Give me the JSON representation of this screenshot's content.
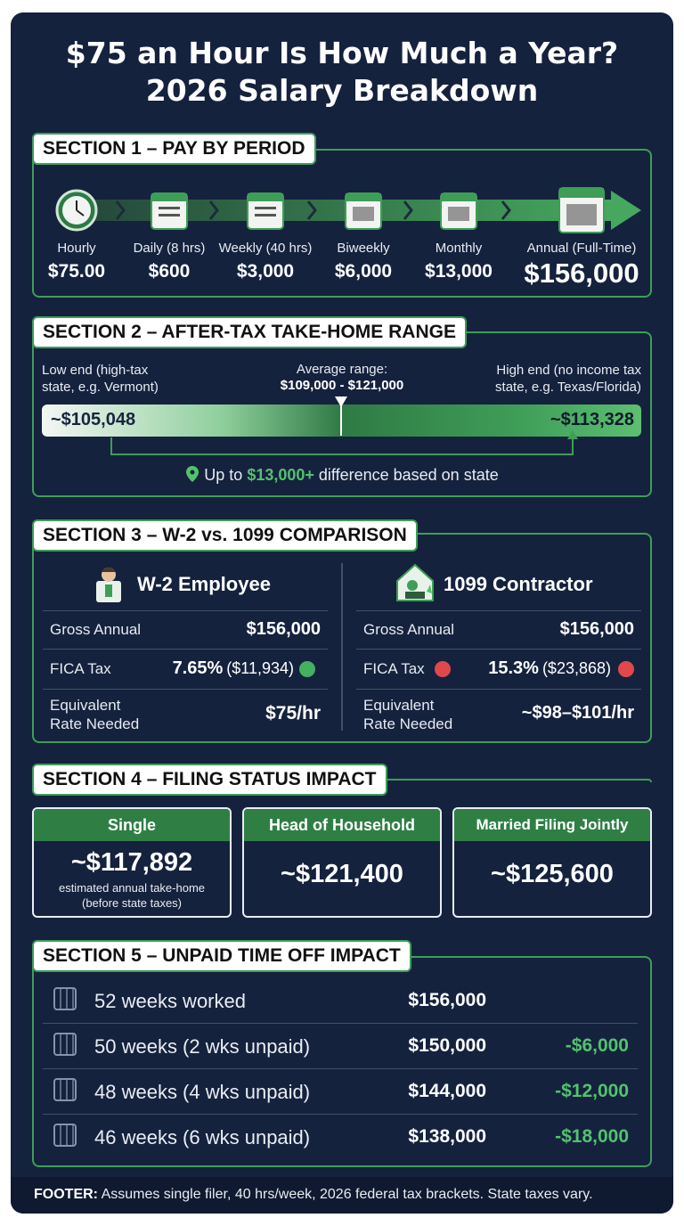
{
  "header": {
    "title_line1": "$75 an Hour Is How Much a Year?",
    "title_line2": "2026 Salary Breakdown"
  },
  "section1": {
    "title": "SECTION 1 – PAY BY PERIOD",
    "periods": [
      {
        "label": "Hourly",
        "amount": "$75.00"
      },
      {
        "label": "Daily (8 hrs)",
        "amount": "$600"
      },
      {
        "label": "Weekly (40 hrs)",
        "amount": "$3,000"
      },
      {
        "label": "Biweekly",
        "amount": "$6,000"
      },
      {
        "label": "Monthly",
        "amount": "$13,000"
      },
      {
        "label": "Annual (Full-Time)",
        "amount": "$156,000"
      }
    ]
  },
  "section2": {
    "title": "SECTION 2 – AFTER-TAX TAKE-HOME RANGE",
    "low_label": "Low end (high-tax state, e.g. Vermont)",
    "average_label": "Average range:",
    "average_range": "$109,000 - $121,000",
    "high_label": "High end (no income tax state, e.g. Texas/Florida)",
    "low_value": "~$105,048",
    "high_value": "~$113,328",
    "note_prefix": "Up to",
    "note_highlight": "$13,000+",
    "note_suffix": "difference based on state"
  },
  "section3": {
    "title": "SECTION 3 – W-2 vs. 1099 COMPARISON",
    "columns": [
      {
        "heading": "W-2 Employee",
        "rows": [
          {
            "label": "Gross Annual",
            "value": "$156,000"
          },
          {
            "label": "FICA Tax",
            "value": "7.65%",
            "detail": "($11,934)"
          },
          {
            "label": "Equivalent Rate Needed",
            "value": "$75/hr"
          }
        ]
      },
      {
        "heading": "1099 Contractor",
        "rows": [
          {
            "label": "Gross Annual",
            "value": "$156,000"
          },
          {
            "label": "FICA Tax",
            "value": "15.3%",
            "detail": "($23,868)"
          },
          {
            "label": "Equivalent Rate Needed",
            "value": "~$98–$101/hr"
          }
        ]
      }
    ]
  },
  "section4": {
    "title": "SECTION 4 – FILING STATUS IMPACT",
    "cards": [
      {
        "status": "Single",
        "value": "~$117,892",
        "note": "estimated annual take-home (before state taxes)"
      },
      {
        "status": "Head of Household",
        "value": "~$121,400"
      },
      {
        "status": "Married Filing Jointly",
        "value": "~$125,600"
      }
    ]
  },
  "section5": {
    "title": "SECTION 5 – UNPAID TIME OFF IMPACT",
    "rows": [
      {
        "label": "52 weeks worked",
        "amount": "$156,000"
      },
      {
        "label": "50 weeks (2 wks unpaid)",
        "amount": "$150,000",
        "difference": "-$6,000"
      },
      {
        "label": "48 weeks (4 wks unpaid)",
        "amount": "$144,000",
        "difference": "-$12,000"
      },
      {
        "label": "46 weeks (6 wks unpaid)",
        "amount": "$138,000",
        "difference": "-$18,000"
      }
    ]
  },
  "footer": {
    "label": "FOOTER:",
    "text": "Assumes single filer, 40 hrs/week, 2026 federal tax brackets. State taxes vary."
  }
}
